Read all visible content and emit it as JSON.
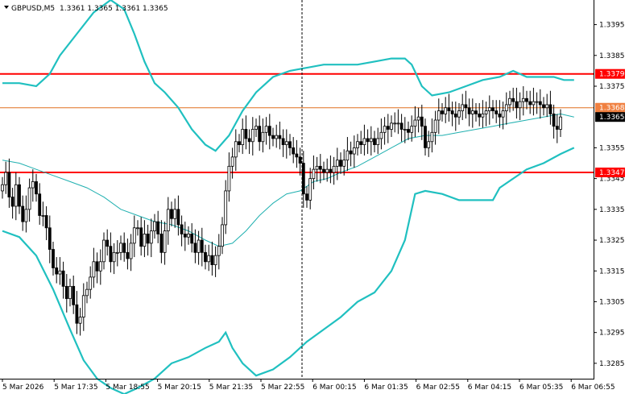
{
  "header": {
    "symbol": "GBPUSD,M5",
    "ohlc": "1.3361 1.3365 1.3361 1.3365"
  },
  "colors": {
    "background": "#ffffff",
    "candle": "#000000",
    "band": "#20c0c0",
    "ma": "#20b0b0",
    "level": "#ff0000",
    "level_label": "#ff0000",
    "ask_line": "#e07020",
    "ask_label": "#f08040",
    "bid_label": "#000000"
  },
  "chart_data": {
    "type": "candlestick",
    "symbol": "GBPUSD",
    "timeframe": "M5",
    "ylim": [
      1.328,
      1.3403
    ],
    "y_ticks": [
      "1.3395",
      "1.3385",
      "1.3375",
      "1.3355",
      "1.3345",
      "1.3335",
      "1.3325",
      "1.3315",
      "1.3305",
      "1.3295",
      "1.3285"
    ],
    "x_ticks": [
      "5 Mar 2026",
      "5 Mar 17:35",
      "5 Mar 18:55",
      "5 Mar 20:15",
      "5 Mar 21:35",
      "5 Mar 22:55",
      "6 Mar 00:15",
      "6 Mar 01:35",
      "6 Mar 02:55",
      "6 Mar 04:15",
      "6 Mar 05:35",
      "6 Mar 06:55"
    ],
    "horizontal_levels": [
      {
        "label": "1.3379",
        "value": 1.3379
      },
      {
        "label": "1.3347",
        "value": 1.3347
      }
    ],
    "ask": {
      "label": "1.3368",
      "value": 1.3368
    },
    "bid": {
      "label": "1.3365",
      "value": 1.3365
    },
    "separator_after": "5 Mar 22:55",
    "closes": [
      1.3343,
      1.3347,
      1.3339,
      1.3336,
      1.3343,
      1.3336,
      1.3331,
      1.3335,
      1.3342,
      1.3344,
      1.334,
      1.3333,
      1.3333,
      1.3329,
      1.3322,
      1.3316,
      1.3314,
      1.3315,
      1.331,
      1.3306,
      1.331,
      1.3304,
      1.3298,
      1.33,
      1.3307,
      1.3309,
      1.3313,
      1.3318,
      1.3315,
      1.3318,
      1.3325,
      1.3323,
      1.3318,
      1.3321,
      1.3321,
      1.3324,
      1.3321,
      1.3319,
      1.3324,
      1.3329,
      1.3329,
      1.3323,
      1.3327,
      1.3324,
      1.3328,
      1.3331,
      1.3327,
      1.3321,
      1.3328,
      1.3335,
      1.3332,
      1.3335,
      1.333,
      1.3327,
      1.3326,
      1.3327,
      1.3324,
      1.3321,
      1.3325,
      1.3321,
      1.3318,
      1.332,
      1.3317,
      1.332,
      1.3323,
      1.333,
      1.3341,
      1.3349,
      1.3352,
      1.3357,
      1.3356,
      1.3361,
      1.3358,
      1.3357,
      1.3361,
      1.3362,
      1.3357,
      1.336,
      1.3362,
      1.3359,
      1.3358,
      1.3359,
      1.3358,
      1.3356,
      1.3357,
      1.3355,
      1.3353,
      1.3352,
      1.335,
      1.334,
      1.3338,
      1.3345,
      1.3348,
      1.3349,
      1.3348,
      1.3347,
      1.3348,
      1.3347,
      1.3349,
      1.3351,
      1.3349,
      1.3351,
      1.3354,
      1.3353,
      1.3355,
      1.3357,
      1.3356,
      1.3358,
      1.3357,
      1.3358,
      1.3356,
      1.3358,
      1.336,
      1.3362,
      1.3361,
      1.3363,
      1.3363,
      1.3363,
      1.3361,
      1.3361,
      1.336,
      1.3362,
      1.3364,
      1.3365,
      1.3362,
      1.3355,
      1.3357,
      1.336,
      1.3364,
      1.3367,
      1.3366,
      1.3368,
      1.3367,
      1.3366,
      1.3365,
      1.3367,
      1.3369,
      1.3368,
      1.3366,
      1.3367,
      1.3366,
      1.3365,
      1.3366,
      1.3367,
      1.3368,
      1.3367,
      1.3366,
      1.3365,
      1.3367,
      1.3369,
      1.3371,
      1.337,
      1.3368,
      1.337,
      1.3371,
      1.337,
      1.3369,
      1.337,
      1.337,
      1.3369,
      1.3368,
      1.3369,
      1.3366,
      1.3362,
      1.3361,
      1.3365
    ],
    "upper_band": [
      [
        0,
        1.3376
      ],
      [
        5,
        1.3376
      ],
      [
        10,
        1.3375
      ],
      [
        14,
        1.3379
      ],
      [
        17,
        1.3385
      ],
      [
        22,
        1.3392
      ],
      [
        27,
        1.3399
      ],
      [
        32,
        1.3403
      ],
      [
        36,
        1.34
      ],
      [
        39,
        1.3392
      ],
      [
        42,
        1.3383
      ],
      [
        45,
        1.3376
      ],
      [
        48,
        1.3373
      ],
      [
        52,
        1.3368
      ],
      [
        56,
        1.3361
      ],
      [
        60,
        1.3356
      ],
      [
        63,
        1.3354
      ],
      [
        67,
        1.3359
      ],
      [
        71,
        1.3367
      ],
      [
        75,
        1.3373
      ],
      [
        80,
        1.3378
      ],
      [
        85,
        1.338
      ],
      [
        90,
        1.3381
      ],
      [
        95,
        1.3382
      ],
      [
        100,
        1.3382
      ],
      [
        105,
        1.3382
      ],
      [
        110,
        1.3383
      ],
      [
        115,
        1.3384
      ],
      [
        119,
        1.3384
      ],
      [
        121,
        1.3382
      ],
      [
        124,
        1.3375
      ],
      [
        127,
        1.3372
      ],
      [
        132,
        1.3373
      ],
      [
        137,
        1.3375
      ],
      [
        142,
        1.3377
      ],
      [
        147,
        1.3378
      ],
      [
        151,
        1.338
      ],
      [
        155,
        1.3378
      ],
      [
        159,
        1.3378
      ],
      [
        163,
        1.3378
      ],
      [
        166,
        1.3377
      ],
      [
        169,
        1.3377
      ]
    ],
    "middle_ma": [
      [
        0,
        1.3351
      ],
      [
        5,
        1.335
      ],
      [
        10,
        1.3348
      ],
      [
        15,
        1.3346
      ],
      [
        20,
        1.3344
      ],
      [
        25,
        1.3342
      ],
      [
        30,
        1.3339
      ],
      [
        35,
        1.3335
      ],
      [
        40,
        1.3333
      ],
      [
        45,
        1.3331
      ],
      [
        50,
        1.333
      ],
      [
        55,
        1.3328
      ],
      [
        60,
        1.3325
      ],
      [
        64,
        1.3323
      ],
      [
        68,
        1.3324
      ],
      [
        72,
        1.3328
      ],
      [
        76,
        1.3333
      ],
      [
        80,
        1.3337
      ],
      [
        84,
        1.334
      ],
      [
        88,
        1.3341
      ],
      [
        92,
        1.3344
      ],
      [
        96,
        1.3345
      ],
      [
        100,
        1.3347
      ],
      [
        105,
        1.3349
      ],
      [
        110,
        1.3352
      ],
      [
        115,
        1.3355
      ],
      [
        120,
        1.3358
      ],
      [
        125,
        1.3359
      ],
      [
        130,
        1.3359
      ],
      [
        135,
        1.336
      ],
      [
        140,
        1.3361
      ],
      [
        145,
        1.3362
      ],
      [
        150,
        1.3363
      ],
      [
        155,
        1.3364
      ],
      [
        160,
        1.3365
      ],
      [
        165,
        1.3366
      ],
      [
        169,
        1.3365
      ]
    ],
    "lower_band": [
      [
        0,
        1.3328
      ],
      [
        5,
        1.3326
      ],
      [
        10,
        1.332
      ],
      [
        15,
        1.3309
      ],
      [
        20,
        1.3296
      ],
      [
        24,
        1.3286
      ],
      [
        28,
        1.328
      ],
      [
        32,
        1.3277
      ],
      [
        36,
        1.3275
      ],
      [
        40,
        1.3277
      ],
      [
        45,
        1.328
      ],
      [
        50,
        1.3285
      ],
      [
        55,
        1.3287
      ],
      [
        60,
        1.329
      ],
      [
        64,
        1.3292
      ],
      [
        66,
        1.3295
      ],
      [
        68,
        1.329
      ],
      [
        71,
        1.3285
      ],
      [
        75,
        1.3281
      ],
      [
        80,
        1.3283
      ],
      [
        85,
        1.3287
      ],
      [
        90,
        1.3292
      ],
      [
        95,
        1.3296
      ],
      [
        100,
        1.33
      ],
      [
        105,
        1.3305
      ],
      [
        110,
        1.3308
      ],
      [
        115,
        1.3315
      ],
      [
        119,
        1.3325
      ],
      [
        122,
        1.334
      ],
      [
        125,
        1.3341
      ],
      [
        130,
        1.334
      ],
      [
        135,
        1.3338
      ],
      [
        140,
        1.3338
      ],
      [
        145,
        1.3338
      ],
      [
        147,
        1.3342
      ],
      [
        151,
        1.3345
      ],
      [
        155,
        1.3348
      ],
      [
        160,
        1.335
      ],
      [
        165,
        1.3353
      ],
      [
        169,
        1.3355
      ]
    ]
  }
}
